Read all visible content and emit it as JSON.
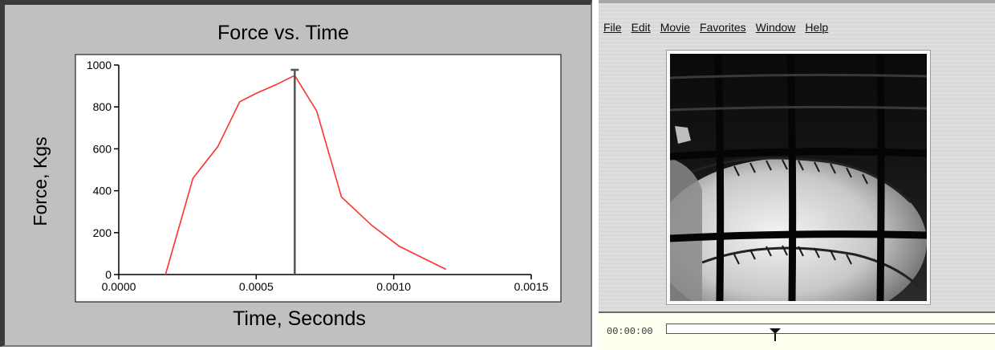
{
  "chart_data": {
    "type": "line",
    "title": "Force vs. Time",
    "xlabel": "Time, Seconds",
    "ylabel": "Force, Kgs",
    "xlim": [
      0,
      0.0015
    ],
    "ylim": [
      0,
      1000
    ],
    "x_ticks": [
      "0.0000",
      "0.0005",
      "0.0010",
      "0.0015"
    ],
    "y_ticks": [
      "0",
      "200",
      "400",
      "600",
      "800",
      "1000"
    ],
    "series": [
      {
        "color": "#ff3030",
        "x": [
          0.00017,
          0.00027,
          0.00036,
          0.00044,
          0.0005,
          0.00057,
          0.00064,
          0.00072,
          0.00081,
          0.00092,
          0.00102,
          0.00112,
          0.00119
        ],
        "y": [
          0,
          460,
          610,
          825,
          865,
          905,
          950,
          780,
          370,
          235,
          135,
          70,
          25
        ]
      }
    ],
    "cursor": {
      "x": 0.00064
    },
    "grid": false,
    "colors": {
      "line": "#ff3030",
      "cursor": "#555555",
      "panel": "#c0c0c0",
      "plot_bg": "#ffffff"
    }
  },
  "player": {
    "menu": [
      "File",
      "Edit",
      "Movie",
      "Favorites",
      "Window",
      "Help"
    ],
    "timecode": "00:00:00",
    "scrub_position": 0.33,
    "frame_description_icon": "baseball-impact-frame"
  }
}
